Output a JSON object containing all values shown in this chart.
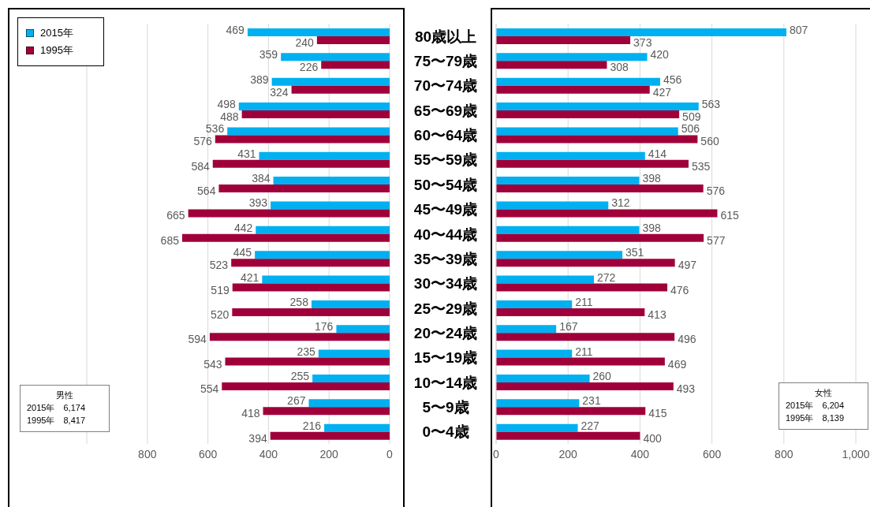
{
  "chart_data": [
    {
      "type": "bar",
      "orientation": "horizontal",
      "categories": [
        null,
        null,
        null,
        null,
        null,
        null,
        null,
        null,
        null,
        null,
        null,
        null,
        null,
        null,
        null,
        null,
        null
      ],
      "series": [
        {
          "name": "2015年",
          "color": "#00b0f0",
          "values": [
            469,
            359,
            389,
            498,
            536,
            431,
            384,
            393,
            442,
            445,
            421,
            258,
            176,
            235,
            255,
            267,
            216
          ]
        },
        {
          "name": "1995年",
          "color": "#a0003a",
          "values": [
            240,
            226,
            324,
            488,
            576,
            584,
            564,
            665,
            685,
            523,
            519,
            520,
            594,
            543,
            554,
            418,
            394
          ]
        }
      ],
      "xlim": [
        1000,
        0
      ],
      "xticks": [
        800,
        600,
        400,
        200,
        0
      ],
      "grid": "x",
      "legend": "top left",
      "tick_labels": "x",
      "data_labels": true,
      "annotations": [
        "男性",
        "2015年　6,174",
        "1995年　8,417"
      ]
    },
    {
      "type": "bar",
      "orientation": "horizontal",
      "categories": [
        "80歳以上",
        "75〜79歳",
        "70〜74歳",
        "65〜69歳",
        "60〜64歳",
        "55〜59歳",
        "50〜54歳",
        "45〜49歳",
        "40〜44歳",
        "35〜39歳",
        "30〜34歳",
        "25〜29歳",
        "20〜24歳",
        "15〜19歳",
        "10〜14歳",
        "5〜9歳",
        "0〜4歳"
      ],
      "series": [
        {
          "color": "#00b0f0",
          "values": [
            807,
            420,
            456,
            563,
            506,
            414,
            398,
            312,
            398,
            351,
            272,
            211,
            167,
            211,
            260,
            231,
            227
          ]
        },
        {
          "color": "#a0003a",
          "values": [
            373,
            308,
            427,
            509,
            560,
            535,
            576,
            615,
            577,
            497,
            476,
            413,
            496,
            469,
            493,
            415,
            400
          ]
        }
      ],
      "xlim": [
        0,
        1000
      ],
      "xticks": [
        0,
        200,
        400,
        600,
        800,
        {
          "value": 1000,
          "label": "1,000"
        }
      ],
      "grid": "x",
      "data_labels": true,
      "annotations": [
        "女性",
        "2015年　6,204",
        "1995年　8,139"
      ]
    }
  ]
}
